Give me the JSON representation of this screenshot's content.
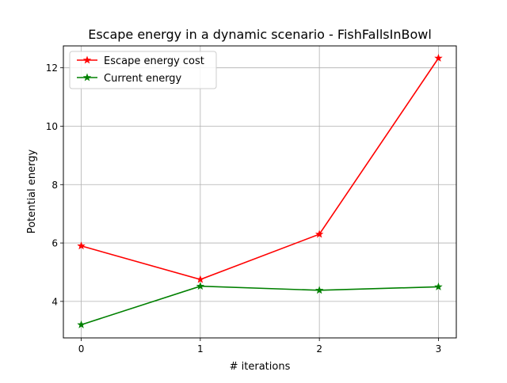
{
  "chart_data": {
    "type": "line",
    "title": "Escape energy in a dynamic scenario - FishFallsInBowl",
    "xlabel": "# iterations",
    "ylabel": "Potential energy",
    "x": [
      0,
      1,
      2,
      3
    ],
    "xlim": [
      -0.15,
      3.15
    ],
    "ylim": [
      2.75,
      12.75
    ],
    "xticks": [
      0,
      1,
      2,
      3
    ],
    "yticks": [
      4,
      6,
      8,
      10,
      12
    ],
    "grid": true,
    "legend_position": "top-left",
    "marker": "star",
    "series": [
      {
        "name": "Escape energy cost",
        "color": "#ff0000",
        "values": [
          5.9,
          4.75,
          6.3,
          12.33
        ]
      },
      {
        "name": "Current energy",
        "color": "#008000",
        "values": [
          3.2,
          4.52,
          4.38,
          4.5
        ]
      }
    ]
  }
}
